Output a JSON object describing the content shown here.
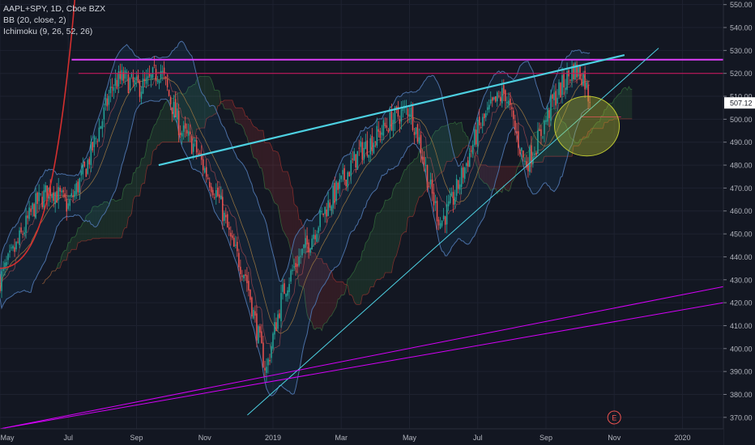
{
  "legend": {
    "symbol": "AAPL+SPY, 1D, Cboe BZX",
    "bb": "BB (20, close, 2)",
    "ichimoku": "Ichimoku (9, 26, 52, 26)"
  },
  "last_price_label": "507.12",
  "earnings_marker": "E",
  "colors": {
    "background": "#131722",
    "up": "#26a69a",
    "down": "#ef5350",
    "bb": "#4a6fa5",
    "resistance_magenta": "#e040fb",
    "resistance_red": "#c2185b",
    "trend_cyan": "#4dd0e1",
    "support_purple": "#d500f9",
    "parabola_red": "#d32f2f",
    "ellipse": "#c0ca33"
  },
  "chart_data": {
    "type": "candlestick",
    "symbol": "AAPL+SPY",
    "interval": "1D",
    "ylim": [
      365,
      552
    ],
    "y_ticks": [
      370,
      380,
      390,
      400,
      410,
      420,
      430,
      440,
      450,
      460,
      470,
      480,
      490,
      500,
      510,
      520,
      530,
      540,
      550
    ],
    "x_ticks": [
      "May",
      "Jul",
      "Sep",
      "Nov",
      "2019",
      "Mar",
      "May",
      "Jul",
      "Sep",
      "Nov",
      "2020"
    ],
    "x_tick_months": [
      0,
      2,
      4,
      6,
      8,
      10,
      12,
      14,
      16,
      18,
      20
    ],
    "x_range_months": [
      0,
      21.2
    ],
    "last_price": 507.12,
    "price_path": [
      [
        0.0,
        430
      ],
      [
        0.5,
        445
      ],
      [
        1.0,
        462
      ],
      [
        1.5,
        470
      ],
      [
        2.0,
        462
      ],
      [
        2.5,
        478
      ],
      [
        3.0,
        500
      ],
      [
        3.3,
        515
      ],
      [
        3.6,
        518
      ],
      [
        4.0,
        514
      ],
      [
        4.3,
        515
      ],
      [
        4.7,
        522
      ],
      [
        5.0,
        508
      ],
      [
        5.3,
        495
      ],
      [
        5.7,
        488
      ],
      [
        6.0,
        478
      ],
      [
        6.4,
        466
      ],
      [
        6.8,
        445
      ],
      [
        7.2,
        432
      ],
      [
        7.5,
        410
      ],
      [
        7.8,
        390
      ],
      [
        8.0,
        405
      ],
      [
        8.3,
        425
      ],
      [
        8.7,
        438
      ],
      [
        9.0,
        445
      ],
      [
        9.5,
        460
      ],
      [
        10.0,
        472
      ],
      [
        10.5,
        485
      ],
      [
        11.0,
        492
      ],
      [
        11.5,
        500
      ],
      [
        12.0,
        505
      ],
      [
        12.3,
        490
      ],
      [
        12.6,
        470
      ],
      [
        12.9,
        455
      ],
      [
        13.2,
        462
      ],
      [
        13.6,
        478
      ],
      [
        14.0,
        495
      ],
      [
        14.4,
        505
      ],
      [
        14.8,
        512
      ],
      [
        15.1,
        495
      ],
      [
        15.4,
        480
      ],
      [
        15.8,
        492
      ],
      [
        16.2,
        508
      ],
      [
        16.5,
        515
      ],
      [
        16.8,
        522
      ],
      [
        17.1,
        519
      ],
      [
        17.3,
        507
      ]
    ],
    "horizontal_lines": [
      {
        "price": 526,
        "x_from": 2.1,
        "x_to": 21.2
      },
      {
        "price": 520,
        "x_from": 2.3,
        "x_to": 21.2
      },
      {
        "price": 501,
        "x_from": 17.0,
        "x_to": 18.2
      }
    ],
    "trend_lines": [
      {
        "role": "upper-wedge",
        "from": [
          4.65,
          480
        ],
        "to": [
          18.3,
          528
        ]
      },
      {
        "role": "lower-wedge",
        "from": [
          7.25,
          371
        ],
        "to": [
          19.3,
          531
        ]
      },
      {
        "role": "long-support-1",
        "from": [
          0.0,
          365
        ],
        "to": [
          21.2,
          427
        ]
      },
      {
        "role": "long-support-2",
        "from": [
          0.0,
          365
        ],
        "to": [
          21.2,
          420
        ]
      }
    ],
    "ellipse_center": [
      17.2,
      497
    ],
    "earnings_month": 18.0
  }
}
